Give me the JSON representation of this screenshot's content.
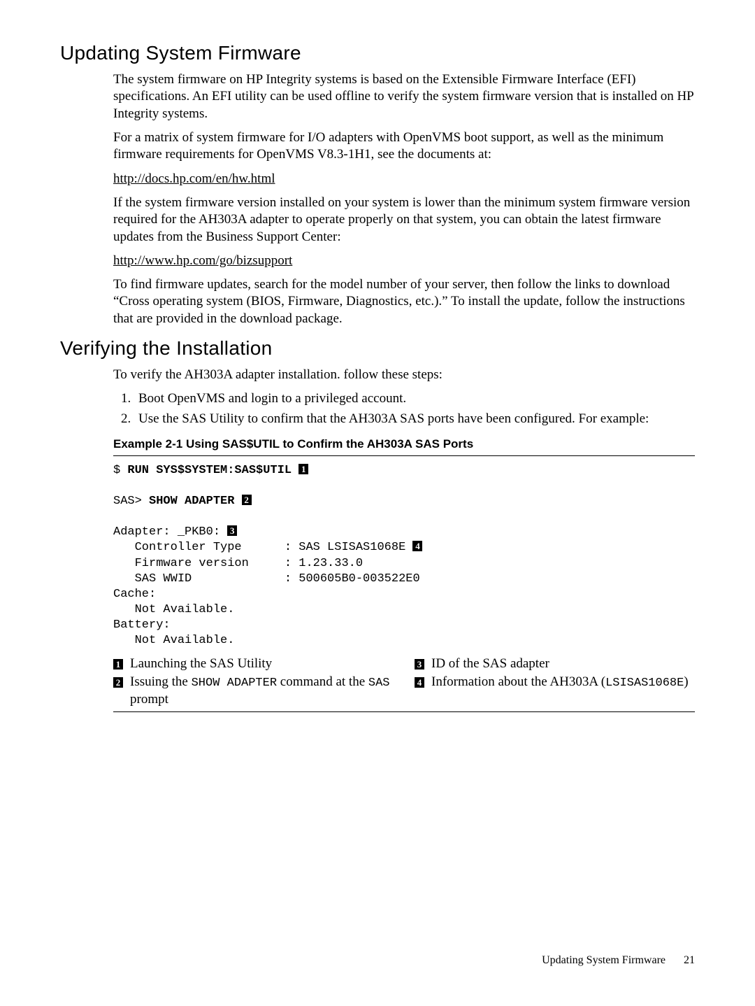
{
  "sections": {
    "updating": {
      "heading": "Updating System Firmware",
      "p1": "The system firmware on HP Integrity systems is based on the Extensible Firmware Interface (EFI) specifications. An EFI utility can be used offline to verify the system firmware version that is installed on HP Integrity systems.",
      "p2": "For a matrix of system firmware for I/O adapters with OpenVMS boot support, as well as the minimum firmware requirements for OpenVMS V8.3-1H1, see the documents at:",
      "link1": "http://docs.hp.com/en/hw.html",
      "p3": "If the system firmware version installed on your system is lower than the minimum system firmware version required for the AH303A adapter to operate properly on that system, you can obtain the latest firmware updates from the Business Support Center:",
      "link2": "http://www.hp.com/go/bizsupport",
      "p4": "To find firmware updates, search for the model number of your server, then follow the links to download “Cross operating system (BIOS, Firmware, Diagnostics, etc.).” To install the update, follow the instructions that are provided in the download package."
    },
    "verifying": {
      "heading": "Verifying the Installation",
      "intro": "To verify the AH303A adapter installation. follow these steps:",
      "steps": {
        "s1": "Boot OpenVMS and login to a privileged account.",
        "s2": "Use the SAS Utility to confirm that the AH303A SAS ports have been configured. For example:"
      },
      "example": {
        "title": "Example 2-1 Using SAS$UTIL to Confirm the AH303A SAS Ports",
        "code": {
          "line1_prompt": "$ ",
          "line1_cmd": "RUN SYS$SYSTEM:SAS$UTIL",
          "line2_prompt": "SAS> ",
          "line2_cmd": "SHOW ADAPTER",
          "adapter_label": "Adapter: _PKB0:",
          "ctrl_label": "   Controller Type      : SAS LSISAS1068E",
          "fw_line": "   Firmware version     : 1.23.33.0",
          "wwid_line": "   SAS WWID             : 500605B0-003522E0",
          "cache_label": "Cache:",
          "cache_val": "   Not Available.",
          "batt_label": "Battery:",
          "batt_val": "   Not Available."
        },
        "callouts": {
          "c1": "Launching the SAS Utility",
          "c2_a": "Issuing the ",
          "c2_b": "SHOW ADAPTER",
          "c2_c": " command at the ",
          "c2_d": "SAS",
          "c2_e": " prompt",
          "c3": "ID of the SAS adapter",
          "c4_a": "Information about the AH303A (",
          "c4_b": "LSISAS1068E",
          "c4_c": ")"
        }
      }
    }
  },
  "footer": {
    "label": "Updating System Firmware",
    "page": "21"
  },
  "callout_nums": {
    "n1": "1",
    "n2": "2",
    "n3": "3",
    "n4": "4"
  }
}
